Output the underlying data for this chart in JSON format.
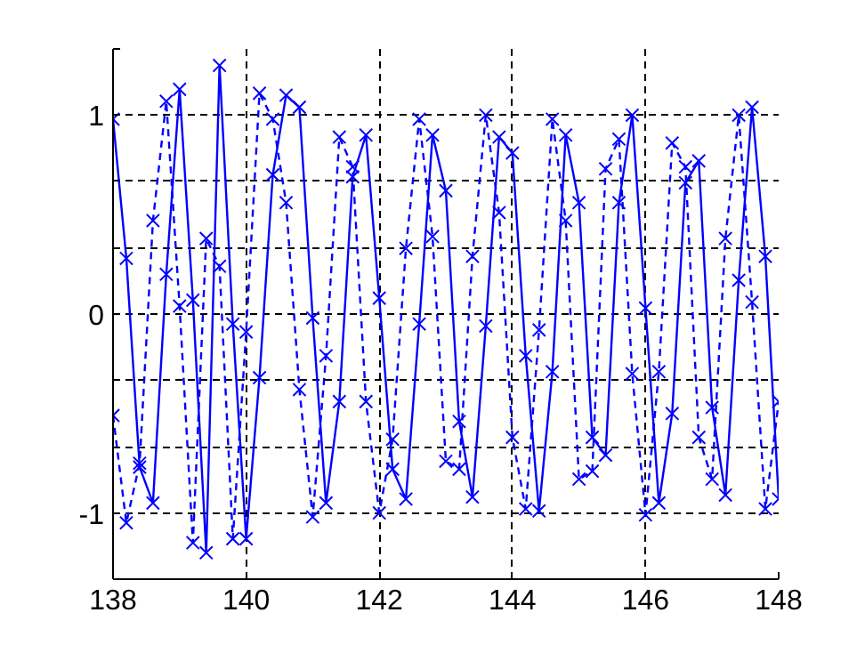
{
  "chart_data": {
    "type": "line",
    "x": [
      138.0,
      138.2,
      138.4,
      138.6,
      138.8,
      139.0,
      139.2,
      139.4,
      139.6,
      139.8,
      140.0,
      140.2,
      140.4,
      140.6,
      140.8,
      141.0,
      141.2,
      141.4,
      141.6,
      141.8,
      142.0,
      142.2,
      142.4,
      142.6,
      142.8,
      143.0,
      143.2,
      143.4,
      143.6,
      143.8,
      144.0,
      144.2,
      144.4,
      144.6,
      144.8,
      145.0,
      145.2,
      145.4,
      145.6,
      145.8,
      146.0,
      146.2,
      146.4,
      146.6,
      146.8,
      147.0,
      147.2,
      147.4,
      147.6,
      147.8,
      148.0
    ],
    "series": [
      {
        "color": "#0000ff",
        "line_style": "solid",
        "values": [
          0.98,
          0.28,
          -0.77,
          -0.95,
          0.2,
          1.13,
          0.07,
          -1.2,
          1.25,
          -0.05,
          -1.13,
          -0.32,
          0.7,
          1.1,
          1.04,
          -0.02,
          -0.95,
          -0.44,
          0.69,
          0.9,
          0.08,
          -0.78,
          -0.93,
          -0.05,
          0.9,
          0.62,
          -0.54,
          -0.92,
          -0.06,
          0.89,
          0.81,
          -0.21,
          -0.99,
          -0.29,
          0.9,
          0.56,
          -0.62,
          -0.71,
          0.56,
          1.0,
          0.03,
          -0.95,
          -0.5,
          0.66,
          0.77,
          -0.47,
          -0.91,
          0.17,
          1.04,
          0.29,
          -0.93
        ]
      },
      {
        "color": "#0000ff",
        "line_style": "dashed",
        "values": [
          -0.51,
          -1.05,
          -0.75,
          0.47,
          1.07,
          0.04,
          -1.15,
          0.38,
          0.24,
          -1.13,
          -0.09,
          1.11,
          0.98,
          0.56,
          -0.38,
          -1.02,
          -0.21,
          0.89,
          0.74,
          -0.44,
          -1.0,
          -0.63,
          0.33,
          0.98,
          0.39,
          -0.74,
          -0.78,
          0.29,
          1.0,
          0.51,
          -0.62,
          -0.98,
          -0.08,
          0.98,
          0.47,
          -0.83,
          -0.79,
          0.73,
          0.88,
          -0.3,
          -1.01,
          -0.29,
          0.86,
          0.74,
          -0.62,
          -0.83,
          0.38,
          1.0,
          0.06,
          -0.98,
          -0.44
        ]
      }
    ],
    "marker": "cross",
    "grid": true,
    "xlim": [
      138,
      148
    ],
    "xticks": [
      138,
      140,
      142,
      144,
      146,
      148
    ],
    "ylim": [
      -1.333,
      1.333
    ],
    "yticks": [
      {
        "value": -1.333,
        "label": null
      },
      -1,
      {
        "value": -0.667,
        "label": null
      },
      {
        "value": -0.333,
        "label": null
      },
      0,
      {
        "value": 0.333,
        "label": null
      },
      {
        "value": 0.667,
        "label": null
      },
      1,
      {
        "value": 1.333,
        "label": null
      }
    ]
  }
}
